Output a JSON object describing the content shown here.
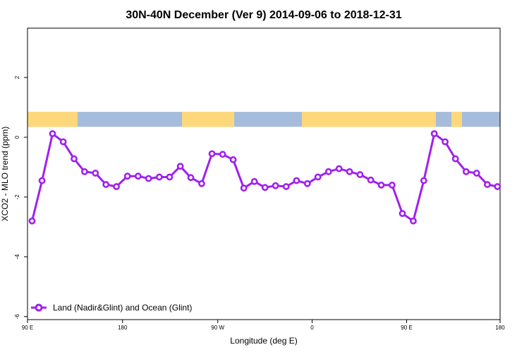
{
  "chart_data": {
    "type": "line",
    "title": "30N-40N December (Ver 9)   2014-09-06 to 2018-12-31",
    "xlabel": "Longitude (deg E)",
    "ylabel": "XCO2 - MLO trend (ppm)",
    "xlim": [
      -90,
      180
    ],
    "ylim": [
      -6.1,
      3.65
    ],
    "x_ticks": [
      {
        "value": -90,
        "label": "90 E"
      },
      {
        "value": -35.7,
        "label": "180"
      },
      {
        "value": 18.7,
        "label": "90 W"
      },
      {
        "value": 72.6,
        "label": "0"
      },
      {
        "value": 126.6,
        "label": "90 E"
      },
      {
        "value": 180,
        "label": "180"
      }
    ],
    "y_ticks": [
      {
        "value": -6,
        "label": "-6"
      },
      {
        "value": -4,
        "label": "-4"
      },
      {
        "value": -2,
        "label": "-2"
      },
      {
        "value": 0,
        "label": "0"
      },
      {
        "value": 2,
        "label": "2"
      }
    ],
    "series": [
      {
        "name": "Land (Nadir&Glint) and Ocean (Glint)",
        "color": "#a020f0",
        "x": [
          -87.4,
          -81.7,
          -75.7,
          -69.6,
          -63.4,
          -57.4,
          -51.2,
          -45.2,
          -39.2,
          -32.9,
          -26.8,
          -20.8,
          -14.7,
          -8.8,
          -2.7,
          3.3,
          9.5,
          15.4,
          21.5,
          27.5,
          33.6,
          39.6,
          45.7,
          51.7,
          57.8,
          63.7,
          69.9,
          75.9,
          82.0,
          88.0,
          94.0,
          100.0,
          106.1,
          112.1,
          118.3,
          124.2,
          130.4,
          136.4,
          142.4,
          148.6,
          154.5,
          160.6,
          166.6,
          172.7,
          178.5
        ],
        "values": [
          -2.8,
          -1.45,
          0.12,
          -0.15,
          -0.72,
          -1.15,
          -1.2,
          -1.58,
          -1.65,
          -1.3,
          -1.3,
          -1.38,
          -1.33,
          -1.33,
          -0.97,
          -1.35,
          -1.55,
          -0.55,
          -0.57,
          -0.75,
          -1.7,
          -1.48,
          -1.68,
          -1.62,
          -1.65,
          -1.45,
          -1.55,
          -1.33,
          -1.15,
          -1.05,
          -1.15,
          -1.25,
          -1.43,
          -1.6,
          -1.6,
          -2.55,
          -2.8,
          -1.45,
          0.12,
          -0.15,
          -0.72,
          -1.15,
          -1.2,
          -1.58,
          -1.65
        ]
      }
    ],
    "legend_position": "bottom-left",
    "grid": false,
    "map_strip": {
      "y_range": [
        0.35,
        0.85
      ],
      "land_color": "#fdd87a",
      "ocean_color": "#a6bcdc"
    }
  }
}
